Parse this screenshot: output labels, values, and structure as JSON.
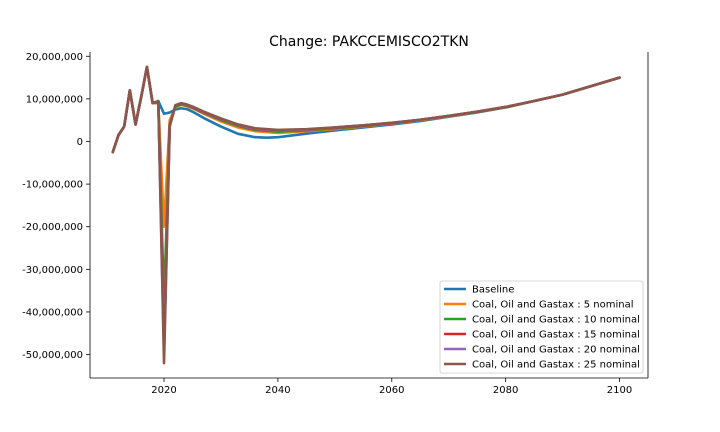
{
  "chart_data": {
    "type": "line",
    "title": "Change: PAKCCEMISCO2TKN",
    "xlabel": "",
    "ylabel": "",
    "xlim": [
      2007,
      2105
    ],
    "ylim": [
      -55500000,
      21000000
    ],
    "xticks": [
      2020,
      2040,
      2060,
      2080,
      2100
    ],
    "xtick_labels": [
      "2020",
      "2040",
      "2060",
      "2080",
      "2100"
    ],
    "yticks": [
      20000000,
      10000000,
      0,
      -10000000,
      -20000000,
      -30000000,
      -40000000,
      -50000000
    ],
    "ytick_labels": [
      "20,000,000",
      "10,000,000",
      "0",
      "-10,000,000",
      "-20,000,000",
      "-30,000,000",
      "-40,000,000",
      "-50,000,000"
    ],
    "grid": false,
    "legend_position": "lower-right",
    "series": [
      {
        "name": "Baseline",
        "color": "#1f77b4",
        "x": [
          2011,
          2012,
          2013,
          2014,
          2015,
          2016,
          2017,
          2018,
          2019,
          2020,
          2021,
          2022,
          2023,
          2024,
          2025,
          2027,
          2030,
          2033,
          2036,
          2038,
          2040,
          2043,
          2046,
          2050,
          2055,
          2060,
          2065,
          2070,
          2075,
          2080,
          2085,
          2090,
          2095,
          2100
        ],
        "y": [
          -2500000,
          1500000,
          3500000,
          12000000,
          4000000,
          10500000,
          17500000,
          9000000,
          9500000,
          6500000,
          6800000,
          7500000,
          7800000,
          7600000,
          7000000,
          5500000,
          3500000,
          1800000,
          1000000,
          900000,
          1000000,
          1500000,
          2000000,
          2600000,
          3300000,
          4000000,
          4800000,
          5800000,
          6800000,
          8000000,
          9500000,
          11000000,
          13000000,
          15000000
        ]
      },
      {
        "name": "Coal, Oil and Gastax : 5 nominal",
        "color": "#ff7f0e",
        "x": [
          2011,
          2012,
          2013,
          2014,
          2015,
          2016,
          2017,
          2018,
          2019,
          2020,
          2021,
          2022,
          2023,
          2024,
          2025,
          2027,
          2030,
          2033,
          2036,
          2040,
          2045,
          2050,
          2055,
          2060,
          2065,
          2070,
          2075,
          2080,
          2085,
          2090,
          2095,
          2100
        ],
        "y": [
          -2500000,
          1500000,
          3500000,
          12000000,
          4000000,
          10500000,
          17500000,
          9000000,
          9000000,
          -20000000,
          5000000,
          8000000,
          8600000,
          8300000,
          7800000,
          6500000,
          4700000,
          3300000,
          2400000,
          2000000,
          2400000,
          2900000,
          3500000,
          4200000,
          5000000,
          5900000,
          6900000,
          8000000,
          9500000,
          11000000,
          13000000,
          15000000
        ]
      },
      {
        "name": "Coal, Oil and Gastax : 10 nominal",
        "color": "#2ca02c",
        "x": [
          2011,
          2012,
          2013,
          2014,
          2015,
          2016,
          2017,
          2018,
          2019,
          2020,
          2021,
          2022,
          2023,
          2024,
          2025,
          2027,
          2030,
          2033,
          2036,
          2040,
          2045,
          2050,
          2055,
          2060,
          2065,
          2070,
          2075,
          2080,
          2085,
          2090,
          2095,
          2100
        ],
        "y": [
          -2500000,
          1500000,
          3500000,
          12000000,
          4000000,
          10500000,
          17500000,
          9000000,
          9200000,
          -38000000,
          4000000,
          8200000,
          8700000,
          8400000,
          7900000,
          6700000,
          5000000,
          3600000,
          2700000,
          2300000,
          2600000,
          3100000,
          3600000,
          4300000,
          5100000,
          6000000,
          6900000,
          8000000,
          9500000,
          11000000,
          13000000,
          15000000
        ]
      },
      {
        "name": "Coal, Oil and Gastax : 15 nominal",
        "color": "#d62728",
        "x": [
          2011,
          2012,
          2013,
          2014,
          2015,
          2016,
          2017,
          2018,
          2019,
          2020,
          2021,
          2022,
          2023,
          2024,
          2025,
          2027,
          2030,
          2033,
          2036,
          2040,
          2045,
          2050,
          2055,
          2060,
          2065,
          2070,
          2075,
          2080,
          2085,
          2090,
          2095,
          2100
        ],
        "y": [
          -2500000,
          1500000,
          3500000,
          12000000,
          4000000,
          10500000,
          17500000,
          9000000,
          9300000,
          -46000000,
          3800000,
          8400000,
          8800000,
          8500000,
          8000000,
          6800000,
          5200000,
          3800000,
          2900000,
          2500000,
          2700000,
          3200000,
          3700000,
          4300000,
          5100000,
          6000000,
          7000000,
          8100000,
          9500000,
          11000000,
          13000000,
          15000000
        ]
      },
      {
        "name": "Coal, Oil and Gastax : 20 nominal",
        "color": "#9467bd",
        "x": [
          2011,
          2012,
          2013,
          2014,
          2015,
          2016,
          2017,
          2018,
          2019,
          2020,
          2021,
          2022,
          2023,
          2024,
          2025,
          2027,
          2030,
          2033,
          2036,
          2040,
          2045,
          2050,
          2055,
          2060,
          2065,
          2070,
          2075,
          2080,
          2085,
          2090,
          2095,
          2100
        ],
        "y": [
          -2500000,
          1500000,
          3500000,
          12000000,
          4000000,
          10500000,
          17500000,
          9000000,
          9300000,
          -50000000,
          3600000,
          8500000,
          8900000,
          8600000,
          8100000,
          6900000,
          5300000,
          3900000,
          3000000,
          2600000,
          2800000,
          3300000,
          3800000,
          4400000,
          5100000,
          6000000,
          7000000,
          8100000,
          9500000,
          11000000,
          13000000,
          15000000
        ]
      },
      {
        "name": "Coal, Oil and Gastax : 25 nominal",
        "color": "#8c564b",
        "x": [
          2011,
          2012,
          2013,
          2014,
          2015,
          2016,
          2017,
          2018,
          2019,
          2020,
          2021,
          2022,
          2023,
          2024,
          2025,
          2027,
          2030,
          2033,
          2036,
          2040,
          2045,
          2050,
          2055,
          2060,
          2065,
          2070,
          2075,
          2080,
          2085,
          2090,
          2095,
          2100
        ],
        "y": [
          -2500000,
          1500000,
          3500000,
          12000000,
          4000000,
          10500000,
          17500000,
          9000000,
          9400000,
          -52000000,
          3500000,
          8500000,
          9000000,
          8700000,
          8200000,
          7000000,
          5400000,
          4000000,
          3100000,
          2700000,
          2900000,
          3300000,
          3800000,
          4400000,
          5100000,
          6000000,
          7000000,
          8100000,
          9500000,
          11000000,
          13000000,
          15000000
        ]
      }
    ]
  }
}
